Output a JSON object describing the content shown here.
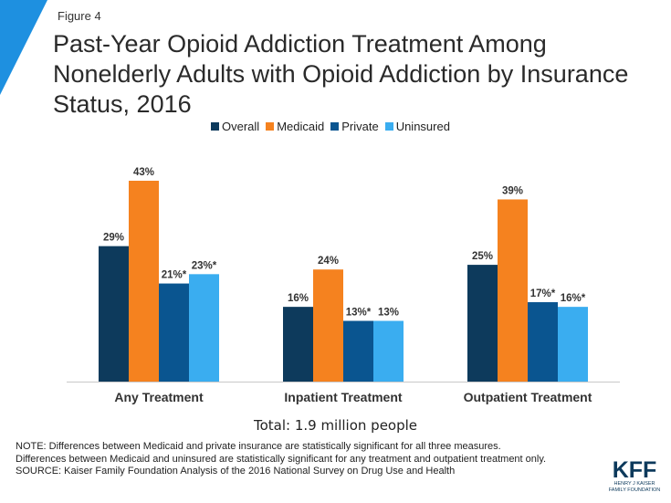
{
  "figure_label": "Figure 4",
  "title": "Past-Year Opioid Addiction Treatment Among Nonelderly Adults with Opioid Addiction by Insurance Status, 2016",
  "total": "Total: 1.9 million people",
  "note_lines": [
    "NOTE: Differences between Medicaid and private insurance are statistically significant for all three measures.",
    "Differences between Medicaid and uninsured are statistically significant for any treatment and outpatient treatment only.",
    "SOURCE: Kaiser Family Foundation Analysis of the 2016 National Survey on Drug Use and Health"
  ],
  "logo": {
    "text": "KFF",
    "subtitle_1": "HENRY J KAISER",
    "subtitle_2": "FAMILY FOUNDATION"
  },
  "colors": {
    "overall": "#0d3a5c",
    "medicaid": "#f5821f",
    "private": "#0a5590",
    "uninsured": "#3aadf0",
    "accent": "#1e90e0"
  },
  "chart_data": {
    "type": "bar",
    "title": "Past-Year Opioid Addiction Treatment Among Nonelderly Adults with Opioid Addiction by Insurance Status, 2016",
    "categories": [
      "Any Treatment",
      "Inpatient Treatment",
      "Outpatient Treatment"
    ],
    "series": [
      {
        "name": "Overall",
        "color": "#0d3a5c",
        "values": [
          29,
          16,
          25
        ],
        "labels": [
          "29%",
          "16%",
          "25%"
        ]
      },
      {
        "name": "Medicaid",
        "color": "#f5821f",
        "values": [
          43,
          24,
          39
        ],
        "labels": [
          "43%",
          "24%",
          "39%"
        ]
      },
      {
        "name": "Private",
        "color": "#0a5590",
        "values": [
          21,
          13,
          17
        ],
        "labels": [
          "21%*",
          "13%*",
          "17%*"
        ]
      },
      {
        "name": "Uninsured",
        "color": "#3aadf0",
        "values": [
          23,
          13,
          16
        ],
        "labels": [
          "23%*",
          "13%",
          "16%*"
        ]
      }
    ],
    "ylim": [
      0,
      45
    ],
    "legend_position": "top",
    "grid": false,
    "xlabel": "",
    "ylabel": ""
  }
}
